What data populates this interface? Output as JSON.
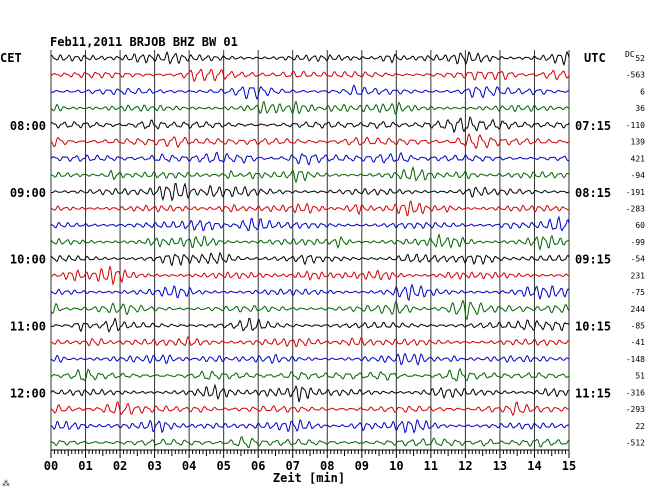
{
  "chart_data": {
    "type": "line",
    "title": "Feb11,2011   BRJOB BHZ BW 01",
    "left_label": "CET",
    "right_label": "UTC",
    "dc_label": "DC",
    "xlabel": "Zeit [min]",
    "xlim": [
      0,
      15
    ],
    "x_ticks": [
      "00",
      "01",
      "02",
      "03",
      "04",
      "05",
      "06",
      "07",
      "08",
      "09",
      "10",
      "11",
      "12",
      "13",
      "14",
      "15"
    ],
    "left_hour_labels": [
      {
        "label": "08:00",
        "trace": 4
      },
      {
        "label": "09:00",
        "trace": 8
      },
      {
        "label": "10:00",
        "trace": 12
      },
      {
        "label": "11:00",
        "trace": 16
      },
      {
        "label": "12:00",
        "trace": 20
      }
    ],
    "right_hour_labels": [
      {
        "label": "07:15",
        "trace": 4
      },
      {
        "label": "08:15",
        "trace": 8
      },
      {
        "label": "09:15",
        "trace": 12
      },
      {
        "label": "10:15",
        "trace": 16
      },
      {
        "label": "11:15",
        "trace": 20
      }
    ],
    "trace_colors": [
      "#000000",
      "#d40000",
      "#0000c8",
      "#006400"
    ],
    "dc_offsets": [
      "52",
      "-563",
      "6",
      "36",
      "-110",
      "139",
      "421",
      "-94",
      "-191",
      "-283",
      "60",
      "-99",
      "-54",
      "231",
      "-75",
      "244",
      "-85",
      "-41",
      "-148",
      "51",
      "-316",
      "-293",
      "22",
      "-512"
    ],
    "grid": true
  },
  "footer_mark": "⁂"
}
